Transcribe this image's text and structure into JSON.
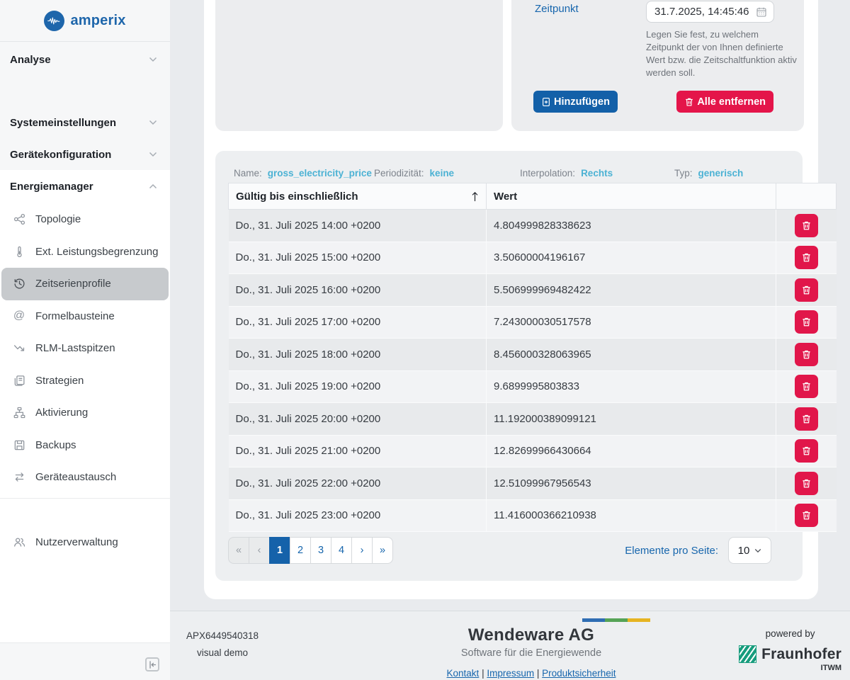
{
  "sidebar": {
    "logo_text": "amperix",
    "sections": [
      {
        "label": "Analyse"
      },
      {
        "label": "Systemeinstellungen"
      },
      {
        "label": "Gerätekonfiguration"
      },
      {
        "label": "Energiemanager"
      }
    ],
    "energiemanager_items": [
      {
        "label": "Topologie",
        "icon": "topology-icon",
        "selected": false
      },
      {
        "label": "Ext. Leistungsbegrenzung",
        "icon": "thermometer-icon",
        "selected": false
      },
      {
        "label": "Zeitserienprofile",
        "icon": "clock-history-icon",
        "selected": true
      },
      {
        "label": "Formelbausteine",
        "icon": "at-icon",
        "selected": false
      },
      {
        "label": "RLM-Lastspitzen",
        "icon": "trend-arrow-icon",
        "selected": false
      },
      {
        "label": "Strategien",
        "icon": "documents-icon",
        "selected": false
      },
      {
        "label": "Aktivierung",
        "icon": "tree-diagram-icon",
        "selected": false
      },
      {
        "label": "Backups",
        "icon": "floppy-icon",
        "selected": false
      },
      {
        "label": "Geräteaustausch",
        "icon": "swap-arrows-icon",
        "selected": false
      }
    ],
    "user_item": {
      "label": "Nutzerverwaltung",
      "icon": "users-icon"
    }
  },
  "zeitpunkt_panel": {
    "label": "Zeitpunkt",
    "datetime_value": "31.7.2025, 14:45:46",
    "help_text": "Legen Sie fest, zu welchem Zeitpunkt der von Ihnen definierte Wert bzw. die Zeitschaltfunktion aktiv werden soll.",
    "add_button": "Hinzufügen",
    "remove_all_button": "Alle entfernen"
  },
  "profile_meta": {
    "name_label": "Name:",
    "name": "gross_electricity_price",
    "period_label": "Periodizität:",
    "period": "keine",
    "interpolation_label": "Interpolation:",
    "interpolation": "Rechts",
    "type_label": "Typ:",
    "type": "generisch"
  },
  "table": {
    "columns": [
      "Gültig bis einschließlich",
      "Wert"
    ],
    "rows": [
      {
        "valid_until": "Do., 31. Juli 2025 14:00 +0200",
        "value": "4.804999828338623"
      },
      {
        "valid_until": "Do., 31. Juli 2025 15:00 +0200",
        "value": "3.50600004196167"
      },
      {
        "valid_until": "Do., 31. Juli 2025 16:00 +0200",
        "value": "5.506999969482422"
      },
      {
        "valid_until": "Do., 31. Juli 2025 17:00 +0200",
        "value": "7.243000030517578"
      },
      {
        "valid_until": "Do., 31. Juli 2025 18:00 +0200",
        "value": "8.456000328063965"
      },
      {
        "valid_until": "Do., 31. Juli 2025 19:00 +0200",
        "value": "9.6899995803833"
      },
      {
        "valid_until": "Do., 31. Juli 2025 20:00 +0200",
        "value": "11.192000389099121"
      },
      {
        "valid_until": "Do., 31. Juli 2025 21:00 +0200",
        "value": "12.82699966430664"
      },
      {
        "valid_until": "Do., 31. Juli 2025 22:00 +0200",
        "value": "12.51099967956543"
      },
      {
        "valid_until": "Do., 31. Juli 2025 23:00 +0200",
        "value": "11.416000366210938"
      }
    ]
  },
  "pagination": {
    "buttons": [
      "«",
      "‹",
      "1",
      "2",
      "3",
      "4",
      "›",
      "»"
    ],
    "active": "1",
    "per_page_label": "Elemente pro Seite:",
    "per_page_value": "10"
  },
  "footer": {
    "device_id": "APX6449540318",
    "device_mode": "visual demo",
    "company": "Wendeware AG",
    "tagline": "Software für die Energiewende",
    "links": [
      "Kontakt",
      "Impressum",
      "Produktsicherheit"
    ],
    "link_separator": "|",
    "powered_by": "powered by",
    "fraunhofer": "Fraunhofer",
    "fraunhofer_sub": "ITWM"
  },
  "colors": {
    "accent_blue": "#1766ad",
    "cyan_value": "#4cb2d4",
    "danger_red": "#e1164a",
    "fraunhofer_green": "#179c7d"
  }
}
